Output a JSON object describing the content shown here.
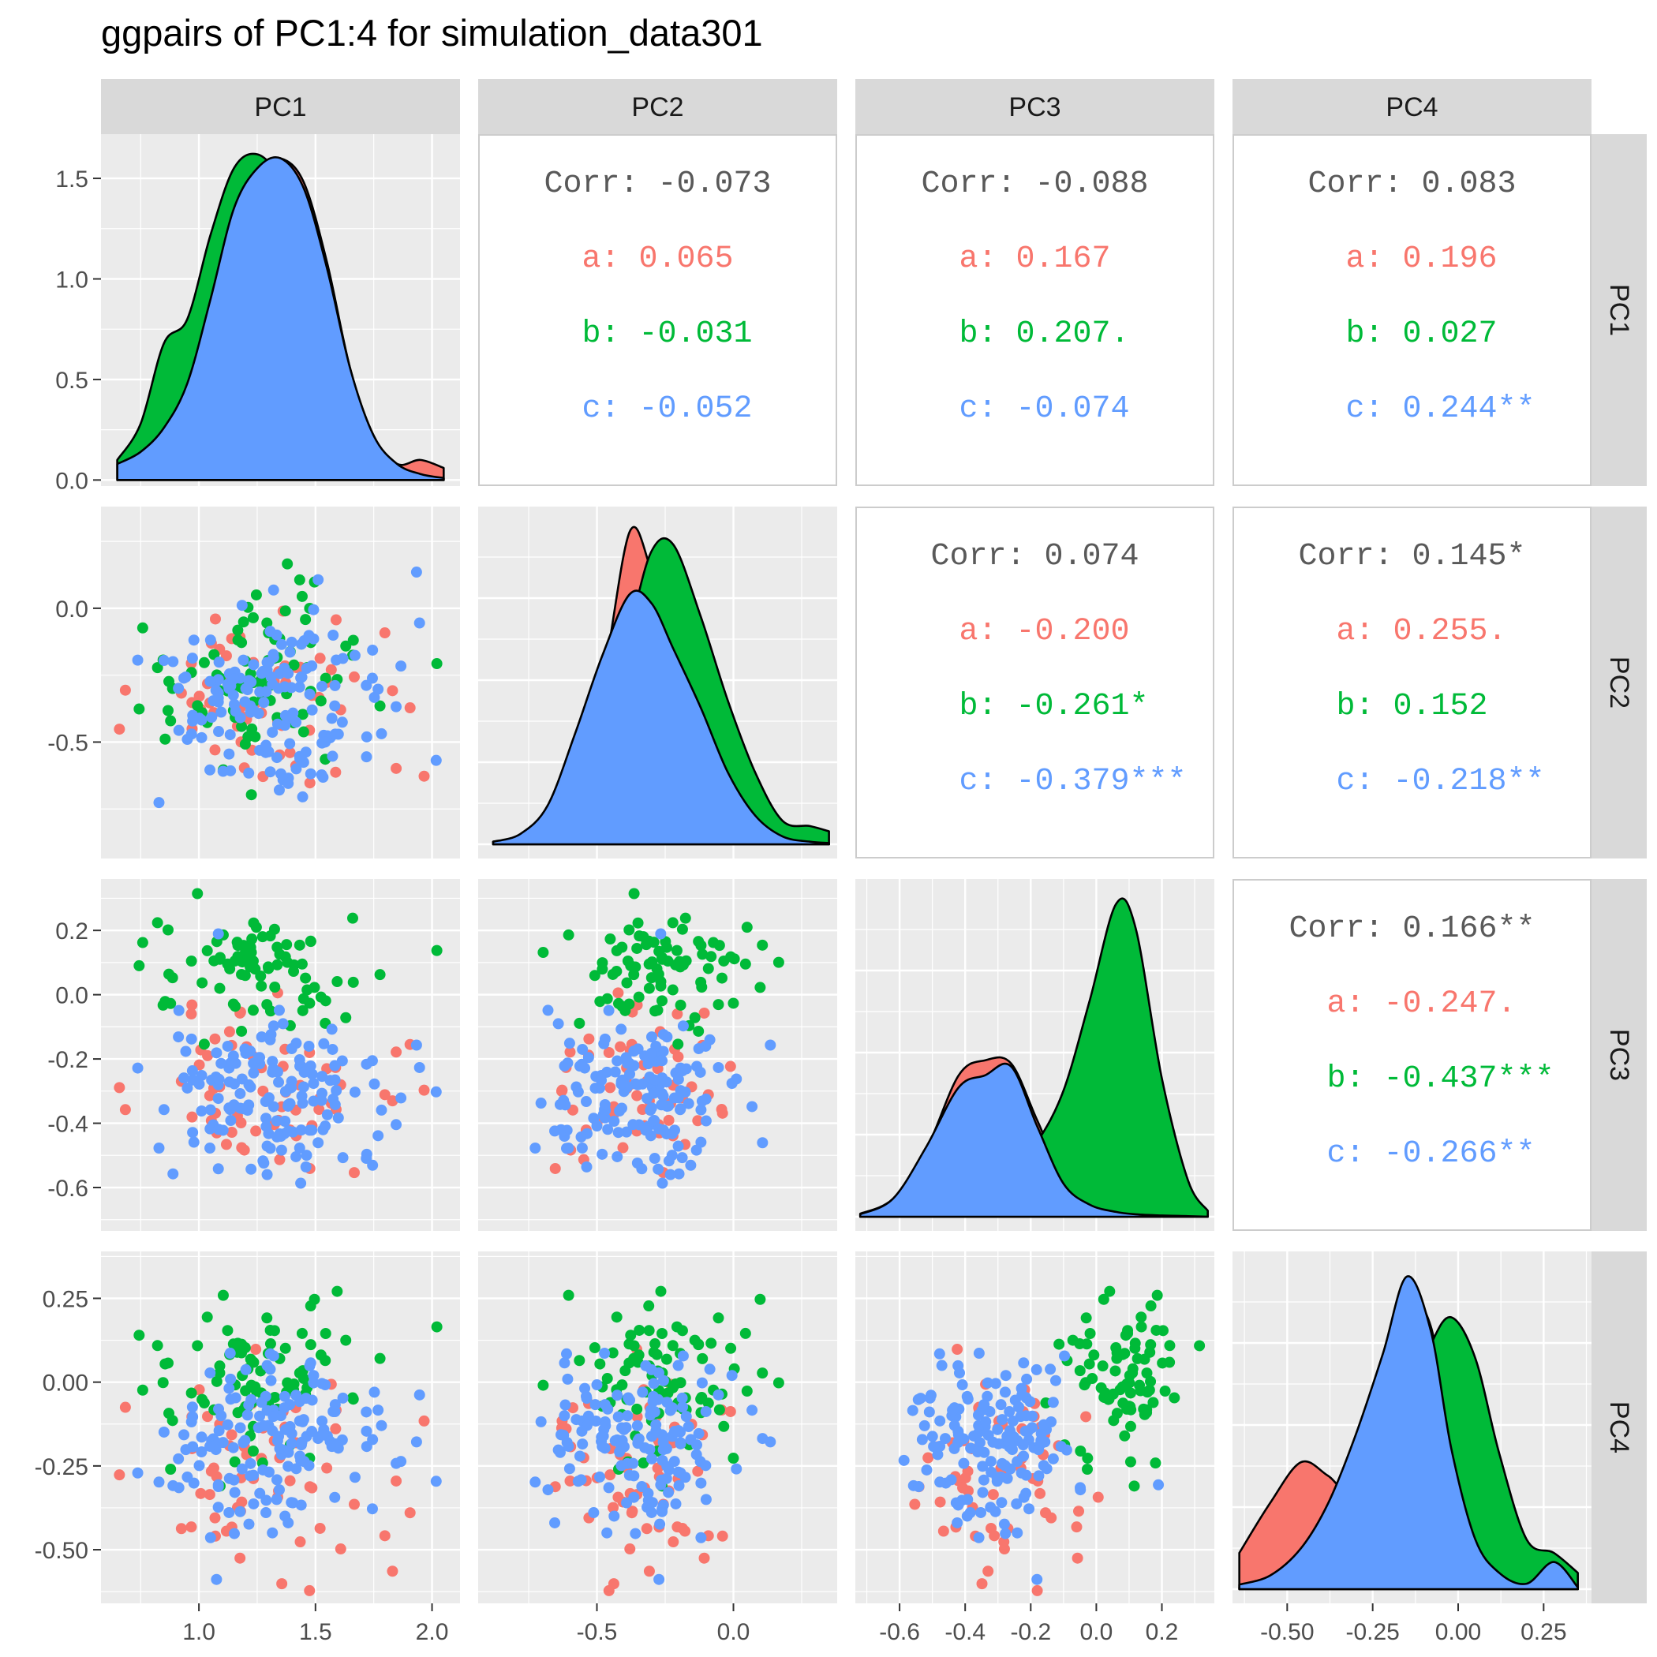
{
  "title": "ggpairs of PC1:4 for simulation_data301",
  "colors": {
    "a": "#F8766D",
    "b": "#00BA38",
    "c": "#619CFF",
    "panel_bg": "#EBEBEB",
    "strip_bg": "#D9D9D9",
    "corr_text": "#595959"
  },
  "chart_data": {
    "type": "scatter",
    "variables": [
      "PC1",
      "PC2",
      "PC3",
      "PC4"
    ],
    "groups": [
      "a",
      "b",
      "c"
    ],
    "ranges": {
      "PC1": [
        0.58,
        2.12
      ],
      "PC2": [
        -0.935,
        0.38
      ],
      "PC3": [
        -0.735,
        0.36
      ],
      "PC4": [
        -0.66,
        0.39
      ]
    },
    "ticks": {
      "PC1": [
        1.0,
        1.5,
        2.0
      ],
      "PC2": [
        -0.5,
        0.0
      ],
      "PC3": [
        -0.6,
        -0.4,
        -0.2,
        0.0,
        0.2
      ],
      "PC4": [
        -0.5,
        -0.25,
        0.0,
        0.25
      ]
    },
    "tick_labels": {
      "PC1": [
        "1.0",
        "1.5",
        "2.0"
      ],
      "PC2": [
        "-0.5",
        "0.0"
      ],
      "PC3": [
        "-0.6",
        "-0.4",
        "-0.2",
        "0.0",
        "0.2"
      ],
      "PC4": [
        "-0.50",
        "-0.25",
        "0.00",
        "0.25"
      ]
    },
    "density_axis": {
      "ticks": [
        0.0,
        0.5,
        1.0,
        1.5
      ],
      "labels": [
        "0.0",
        "0.5",
        "1.0",
        "1.5"
      ],
      "ylim": [
        -0.03,
        1.72
      ]
    },
    "group_stats": {
      "a": {
        "mean": [
          1.3,
          -0.35,
          -0.32,
          -0.28
        ],
        "sd": [
          0.3,
          0.16,
          0.14,
          0.17
        ]
      },
      "b": {
        "mean": [
          1.25,
          -0.24,
          0.06,
          0.0
        ],
        "sd": [
          0.24,
          0.17,
          0.09,
          0.12
        ]
      },
      "c": {
        "mean": [
          1.3,
          -0.35,
          -0.3,
          -0.17
        ],
        "sd": [
          0.26,
          0.17,
          0.13,
          0.13
        ]
      }
    },
    "densities": {
      "PC1": {
        "x": [
          0.65,
          0.75,
          0.85,
          0.95,
          1.05,
          1.15,
          1.25,
          1.35,
          1.45,
          1.55,
          1.65,
          1.75,
          1.85,
          1.95,
          2.05
        ],
        "a": [
          0.1,
          0.2,
          0.42,
          0.78,
          1.12,
          1.4,
          1.55,
          1.6,
          1.48,
          1.08,
          0.55,
          0.22,
          0.08,
          0.1,
          0.06
        ],
        "b": [
          0.1,
          0.28,
          0.68,
          0.8,
          1.22,
          1.55,
          1.62,
          1.5,
          1.25,
          0.82,
          0.4,
          0.15,
          0.05,
          0.02,
          0.01
        ],
        "c": [
          0.08,
          0.14,
          0.26,
          0.48,
          0.9,
          1.35,
          1.55,
          1.6,
          1.45,
          1.05,
          0.55,
          0.22,
          0.08,
          0.03,
          0.01
        ]
      },
      "PC2": {
        "x": [
          -0.88,
          -0.78,
          -0.68,
          -0.58,
          -0.48,
          -0.38,
          -0.3,
          -0.22,
          -0.12,
          -0.02,
          0.08,
          0.18,
          0.28,
          0.35
        ],
        "a": [
          0.02,
          0.05,
          0.2,
          0.55,
          1.25,
          2.4,
          2.1,
          1.6,
          1.1,
          0.55,
          0.2,
          0.05,
          0.02,
          0.01
        ],
        "b": [
          0.02,
          0.04,
          0.12,
          0.35,
          0.85,
          1.65,
          2.25,
          2.3,
          1.75,
          1.1,
          0.55,
          0.18,
          0.14,
          0.1
        ],
        "c": [
          0.02,
          0.08,
          0.3,
          0.85,
          1.45,
          1.92,
          1.85,
          1.5,
          1.05,
          0.55,
          0.22,
          0.06,
          0.02,
          0.01
        ]
      },
      "PC3": {
        "x": [
          -0.72,
          -0.62,
          -0.52,
          -0.42,
          -0.34,
          -0.26,
          -0.18,
          -0.1,
          -0.02,
          0.06,
          0.12,
          0.2,
          0.28,
          0.34
        ],
        "a": [
          0.05,
          0.3,
          1.1,
          2.35,
          2.6,
          2.55,
          1.6,
          0.65,
          0.3,
          0.15,
          0.1,
          0.05,
          0.02,
          0.01
        ],
        "b": [
          0.02,
          0.05,
          0.12,
          0.3,
          0.5,
          0.8,
          1.25,
          2.1,
          3.6,
          5.2,
          4.8,
          2.3,
          0.6,
          0.1
        ],
        "c": [
          0.04,
          0.3,
          1.15,
          2.15,
          2.35,
          2.5,
          1.5,
          0.55,
          0.2,
          0.08,
          0.04,
          0.02,
          0.01,
          0.0
        ]
      },
      "PC4": {
        "x": [
          -0.64,
          -0.55,
          -0.46,
          -0.38,
          -0.3,
          -0.22,
          -0.15,
          -0.08,
          -0.02,
          0.05,
          0.12,
          0.2,
          0.28,
          0.35
        ],
        "a": [
          0.4,
          0.95,
          1.4,
          1.25,
          1.05,
          1.85,
          3.1,
          2.9,
          1.55,
          0.6,
          0.2,
          0.06,
          0.02,
          0.01
        ],
        "b": [
          0.02,
          0.05,
          0.12,
          0.28,
          0.6,
          1.2,
          2.0,
          2.7,
          3.0,
          2.55,
          1.5,
          0.55,
          0.4,
          0.18
        ],
        "c": [
          0.05,
          0.15,
          0.45,
          0.95,
          1.7,
          2.6,
          3.45,
          2.85,
          1.55,
          0.55,
          0.18,
          0.06,
          0.3,
          0.02
        ]
      }
    },
    "correlations": [
      {
        "row": 0,
        "col": 1,
        "corr": "Corr: -0.073",
        "a": "a: 0.065",
        "b": "b: -0.031",
        "c": "c: -0.052"
      },
      {
        "row": 0,
        "col": 2,
        "corr": "Corr: -0.088",
        "a": "a: 0.167",
        "b": "b: 0.207.",
        "c": "c: -0.074"
      },
      {
        "row": 0,
        "col": 3,
        "corr": "Corr: 0.083",
        "a": "a: 0.196",
        "b": "b: 0.027",
        "c": "c: 0.244**"
      },
      {
        "row": 1,
        "col": 2,
        "corr": "Corr: 0.074",
        "a": "a: -0.200",
        "b": "b: -0.261*",
        "c": "c: -0.379***"
      },
      {
        "row": 1,
        "col": 3,
        "corr": "Corr: 0.145*",
        "a": "a: 0.255.",
        "b": "b: 0.152",
        "c": "c: -0.218**"
      },
      {
        "row": 2,
        "col": 3,
        "corr": "Corr: 0.166**",
        "a": "a: -0.247.",
        "b": "b: -0.437***",
        "c": "c: -0.266**"
      }
    ]
  }
}
